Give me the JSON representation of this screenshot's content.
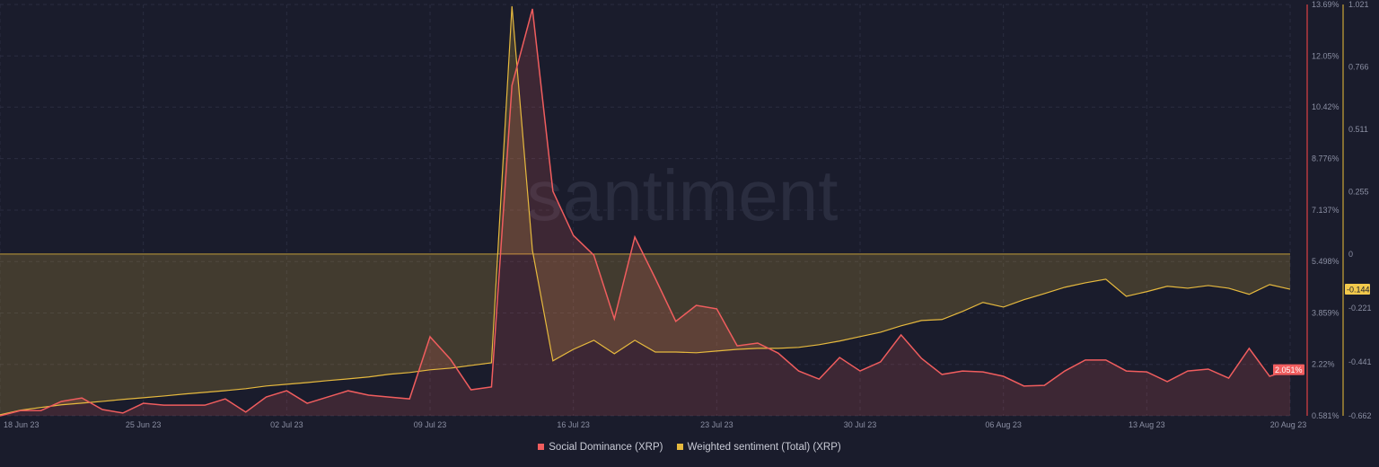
{
  "watermark": "santiment",
  "chart_data": {
    "type": "line",
    "title": "",
    "x_start": "18 Jun 23",
    "x_end": "20 Aug 23",
    "x_tick_labels": [
      "18 Jun 23",
      "25 Jun 23",
      "02 Jul 23",
      "09 Jul 23",
      "16 Jul 23",
      "23 Jul 23",
      "30 Jul 23",
      "06 Aug 23",
      "13 Aug 23",
      "20 Aug 23"
    ],
    "x_tick_day_index": [
      0,
      7,
      14,
      21,
      28,
      35,
      42,
      49,
      56,
      63
    ],
    "grid": true,
    "legend_placement": "bottom-center",
    "series": [
      {
        "name": "Social Dominance (XRP)",
        "color": "#f05d5e",
        "axis": "right-inner",
        "unit": "%",
        "ylim": [
          0.581,
          13.69
        ],
        "y_ticks": [
          "13.69%",
          "12.05%",
          "10.42%",
          "8.776%",
          "7.137%",
          "5.498%",
          "3.859%",
          "2.22%",
          "0.581%"
        ],
        "last_value_label": "2.051%",
        "values": [
          0.58,
          0.75,
          0.75,
          1.04,
          1.15,
          0.78,
          0.67,
          0.98,
          0.92,
          0.92,
          0.92,
          1.12,
          0.7,
          1.18,
          1.38,
          0.98,
          1.18,
          1.38,
          1.24,
          1.18,
          1.12,
          3.1,
          2.38,
          1.41,
          1.5,
          11.11,
          13.55,
          7.74,
          6.33,
          5.7,
          3.67,
          6.28,
          4.96,
          3.59,
          4.1,
          3.99,
          2.81,
          2.9,
          2.58,
          2.01,
          1.75,
          2.44,
          2.01,
          2.3,
          3.16,
          2.41,
          1.9,
          2.01,
          1.98,
          1.84,
          1.53,
          1.55,
          2.01,
          2.36,
          2.36,
          2.01,
          1.98,
          1.67,
          2.01,
          2.07,
          1.78,
          2.73,
          1.84,
          2.051
        ]
      },
      {
        "name": "Weighted sentiment (Total) (XRP)",
        "color": "#e6b93e",
        "axis": "right-outer",
        "unit": "",
        "ylim": [
          -0.662,
          1.021
        ],
        "y_ticks": [
          "1.021",
          "0.766",
          "0.511",
          "0.255",
          "0",
          "-0.221",
          "-0.441",
          "-0.662"
        ],
        "y_tick_values": [
          1.021,
          0.766,
          0.511,
          0.255,
          0,
          -0.221,
          -0.441,
          -0.662
        ],
        "last_value_label": "-0.144",
        "values": [
          -0.658,
          -0.639,
          -0.628,
          -0.617,
          -0.61,
          -0.603,
          -0.595,
          -0.588,
          -0.581,
          -0.573,
          -0.566,
          -0.559,
          -0.551,
          -0.54,
          -0.533,
          -0.526,
          -0.518,
          -0.511,
          -0.503,
          -0.492,
          -0.485,
          -0.474,
          -0.467,
          -0.456,
          -0.445,
          1.014,
          0.015,
          -0.437,
          -0.39,
          -0.353,
          -0.408,
          -0.353,
          -0.401,
          -0.401,
          -0.404,
          -0.397,
          -0.39,
          -0.386,
          -0.386,
          -0.382,
          -0.371,
          -0.356,
          -0.338,
          -0.32,
          -0.294,
          -0.272,
          -0.268,
          -0.235,
          -0.198,
          -0.217,
          -0.187,
          -0.162,
          -0.136,
          -0.118,
          -0.103,
          -0.173,
          -0.154,
          -0.132,
          -0.14,
          -0.129,
          -0.14,
          -0.165,
          -0.125,
          -0.144
        ]
      }
    ]
  }
}
